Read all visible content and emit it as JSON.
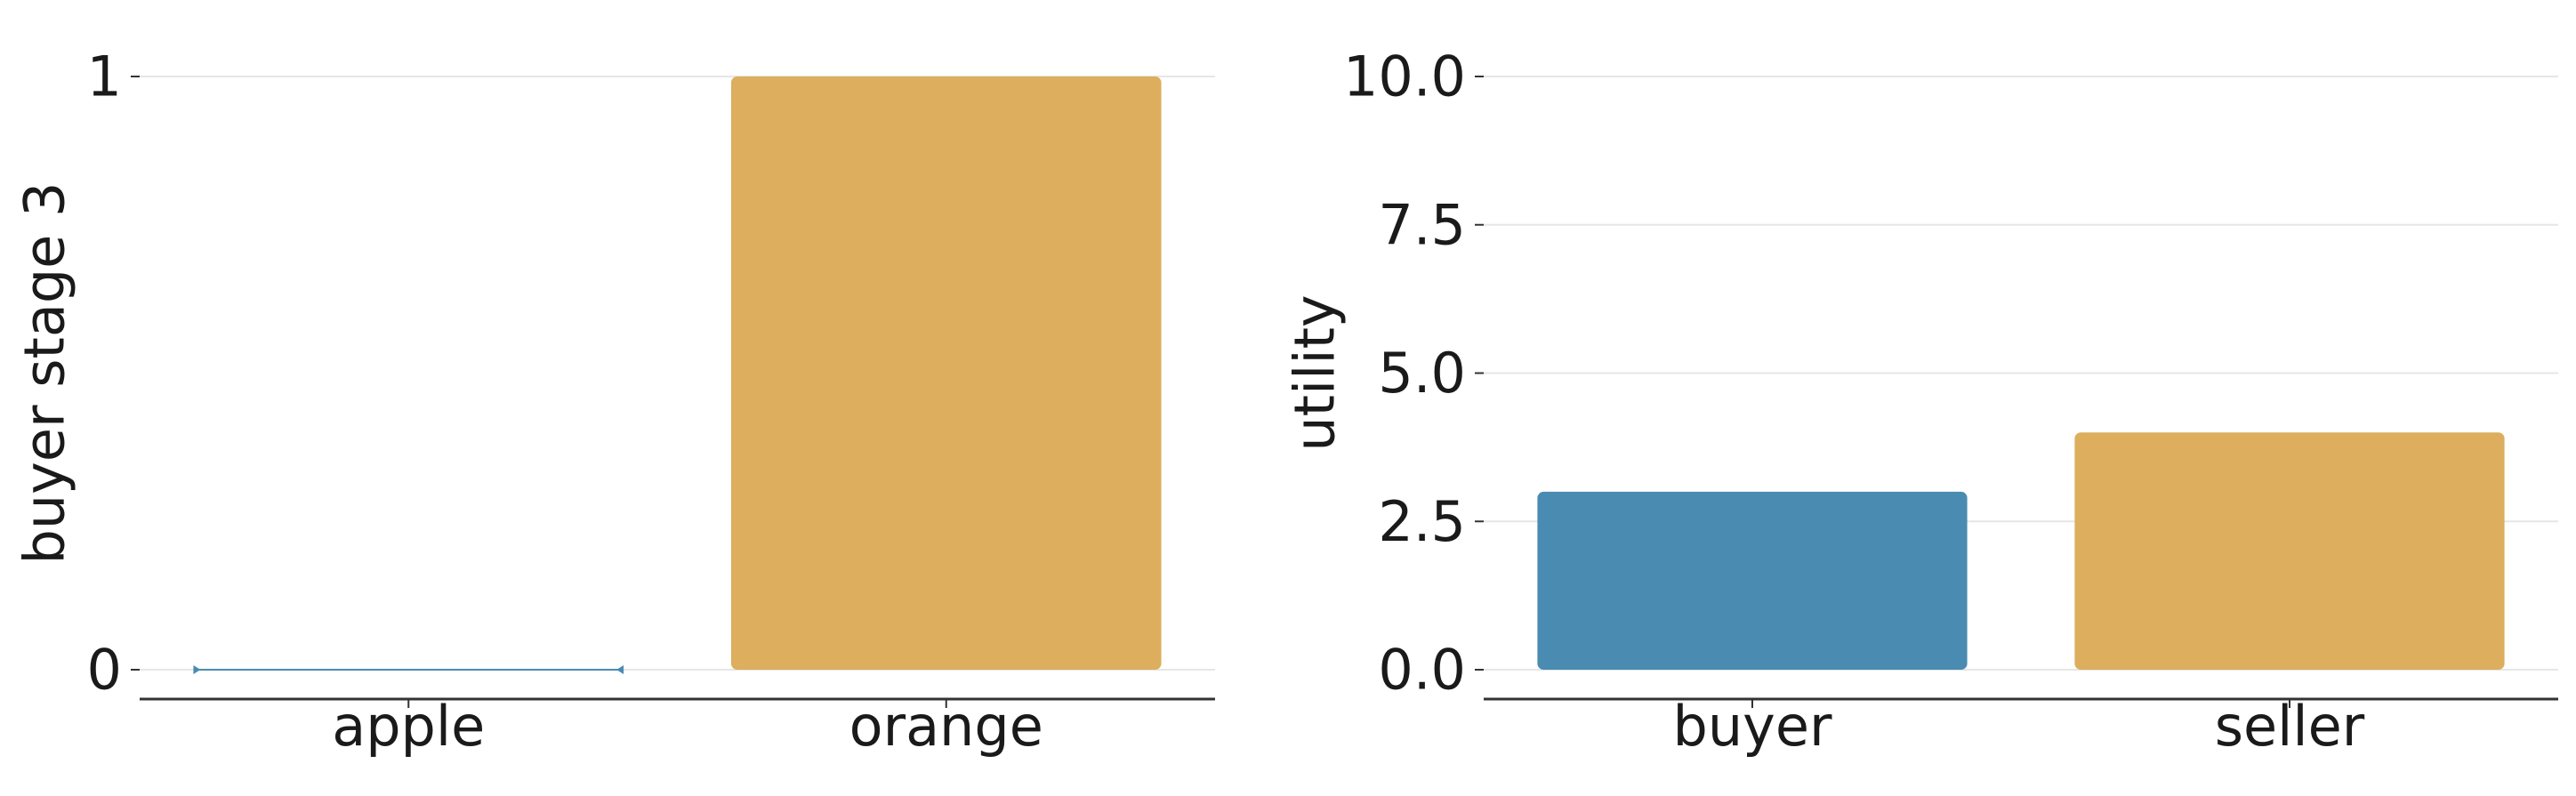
{
  "colors": {
    "blue": "#4a8bb1",
    "yellow": "#dcae5d",
    "grid": "#e6e6e6",
    "axis": "#333333",
    "text": "#1a1a1a"
  },
  "chart_data": [
    {
      "type": "bar",
      "title": "",
      "xlabel": "",
      "ylabel": "buyer stage 3",
      "categories": [
        "apple",
        "orange"
      ],
      "values": [
        0,
        1
      ],
      "bar_colors": [
        "#4a8bb1",
        "#dcae5d"
      ],
      "ylim": [
        0,
        1
      ],
      "yticks": [
        0,
        1
      ],
      "ytick_labels": [
        "0",
        "1"
      ],
      "grid": true,
      "legend": "none"
    },
    {
      "type": "bar",
      "title": "",
      "xlabel": "",
      "ylabel": "utility",
      "categories": [
        "buyer",
        "seller"
      ],
      "values": [
        3,
        4
      ],
      "bar_colors": [
        "#4a8bb1",
        "#dcae5d"
      ],
      "ylim": [
        0,
        10
      ],
      "yticks": [
        0,
        2.5,
        5,
        7.5,
        10
      ],
      "ytick_labels": [
        "0.0",
        "2.5",
        "5.0",
        "7.5",
        "10.0"
      ],
      "grid": true,
      "legend": "none"
    }
  ]
}
